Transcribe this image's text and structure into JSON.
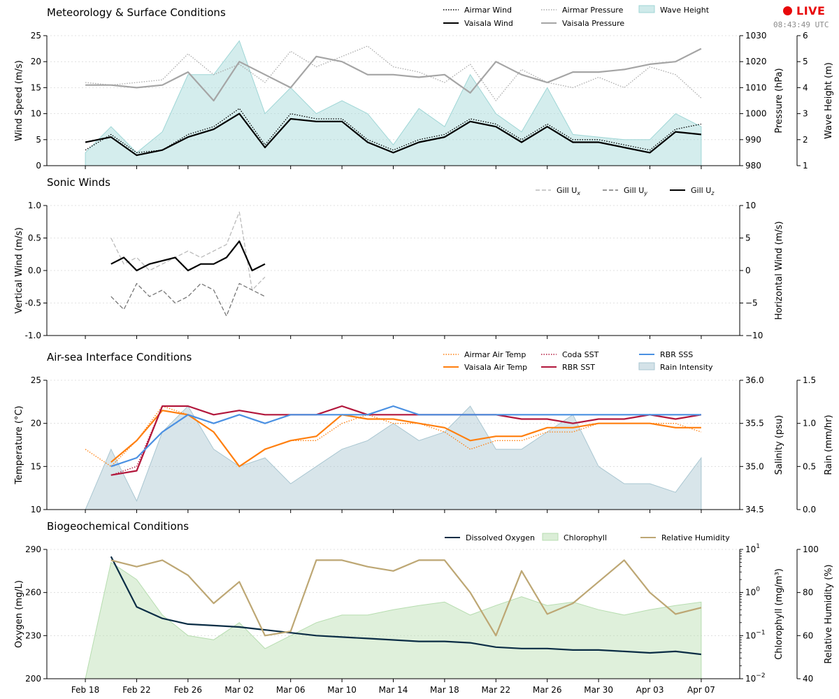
{
  "status": {
    "live_label": "LIVE",
    "live_color": "#e8080a",
    "clock": "08:43:49 UTC"
  },
  "x_axis": {
    "type": "date",
    "range": [
      "2025-02-15",
      "2025-04-10"
    ],
    "tick_labels": [
      "Feb 18",
      "Feb 22",
      "Feb 26",
      "Mar 02",
      "Mar 06",
      "Mar 10",
      "Mar 14",
      "Mar 18",
      "Mar 22",
      "Mar 26",
      "Mar 30",
      "Apr 03",
      "Apr 07"
    ]
  },
  "chart_data": [
    {
      "type": "line",
      "title": "Meteorology & Surface Conditions",
      "ylabel": "Wind Speed (m/s)",
      "ylim": [
        0,
        25
      ],
      "yticks": [
        0,
        5,
        10,
        15,
        20,
        25
      ],
      "y2label": "Pressure (hPa)",
      "y2lim": [
        980,
        1030
      ],
      "y2ticks": [
        980,
        990,
        1000,
        1010,
        1020,
        1030
      ],
      "y3label": "Wave Height (m)",
      "y3lim": [
        1,
        6
      ],
      "y3ticks": [
        1,
        2,
        3,
        4,
        5,
        6
      ],
      "grid": true,
      "legend": "top-right",
      "x": [
        "2025-02-18",
        "2025-02-20",
        "2025-02-22",
        "2025-02-24",
        "2025-02-26",
        "2025-02-28",
        "2025-03-02",
        "2025-03-04",
        "2025-03-06",
        "2025-03-08",
        "2025-03-10",
        "2025-03-12",
        "2025-03-14",
        "2025-03-16",
        "2025-03-18",
        "2025-03-20",
        "2025-03-22",
        "2025-03-24",
        "2025-03-26",
        "2025-03-28",
        "2025-03-30",
        "2025-04-01",
        "2025-04-03",
        "2025-04-05",
        "2025-04-07"
      ],
      "series": [
        {
          "name": "Airmar Wind",
          "axis": "y",
          "style": "dotted",
          "color": "#000000",
          "values": [
            3,
            6,
            2.5,
            3,
            6,
            7.5,
            11,
            4,
            10,
            9,
            9,
            5,
            3,
            5,
            6,
            9,
            8,
            5,
            8,
            5,
            5,
            4,
            3,
            7,
            8
          ]
        },
        {
          "name": "Vaisala Wind",
          "axis": "y",
          "style": "solid",
          "color": "#000000",
          "values": [
            4.5,
            5.5,
            2,
            3,
            5.5,
            7,
            10,
            3.5,
            9,
            8.5,
            8.5,
            4.5,
            2.5,
            4.5,
            5.5,
            8.5,
            7.5,
            4.5,
            7.5,
            4.5,
            4.5,
            3.5,
            2.5,
            6.5,
            6
          ]
        },
        {
          "name": "Airmar Pressure",
          "axis": "y2",
          "style": "dotted",
          "color": "#aaaaaa",
          "values": [
            1012,
            1011,
            1012,
            1013,
            1023,
            1015,
            1019,
            1012,
            1024,
            1018,
            1022,
            1026,
            1018,
            1016,
            1012,
            1019,
            1005,
            1017,
            1012,
            1010,
            1014,
            1010,
            1018,
            1015,
            1006
          ]
        },
        {
          "name": "Vaisala Pressure",
          "axis": "y2",
          "style": "solid",
          "color": "#a5a5a5",
          "values": [
            1011,
            1011,
            1010,
            1011,
            1016,
            1005,
            1020,
            1015,
            1010,
            1022,
            1020,
            1015,
            1015,
            1014,
            1015,
            1008,
            1020,
            1015,
            1012,
            1016,
            1016,
            1017,
            1019,
            1020,
            1025
          ]
        },
        {
          "name": "Wave Height",
          "axis": "y3",
          "type": "area",
          "color": "#9fd6d6",
          "values": [
            1.5,
            2.5,
            1.5,
            2.3,
            4.5,
            4.5,
            5.8,
            3,
            4,
            3,
            3.5,
            3,
            1.8,
            3.2,
            2.5,
            4.5,
            3,
            2.3,
            4,
            2.2,
            2.1,
            2,
            2,
            3,
            2.5
          ]
        }
      ]
    },
    {
      "type": "line",
      "title": "Sonic Winds",
      "ylabel": "Vertical Wind (m/s)",
      "ylim": [
        -1.0,
        1.0
      ],
      "yticks": [
        -1.0,
        -0.5,
        0.0,
        0.5,
        1.0
      ],
      "y2label": "Horizontal Wind (m/s)",
      "y2lim": [
        -10,
        10
      ],
      "y2ticks": [
        -10,
        -5,
        0,
        5,
        10
      ],
      "grid": true,
      "legend": "top-right",
      "x": [
        "2025-02-20",
        "2025-02-21",
        "2025-02-22",
        "2025-02-23",
        "2025-02-24",
        "2025-02-25",
        "2025-02-26",
        "2025-02-27",
        "2025-02-28",
        "2025-03-01",
        "2025-03-02",
        "2025-03-03",
        "2025-03-04"
      ],
      "series": [
        {
          "name": "Gill U_x",
          "axis": "y2",
          "style": "dashed",
          "color": "#bbbbbb",
          "values": [
            5,
            1,
            2,
            0,
            1,
            2,
            3,
            2,
            3,
            4,
            9,
            -3,
            -1
          ]
        },
        {
          "name": "Gill U_y",
          "axis": "y2",
          "style": "dashed",
          "color": "#777777",
          "values": [
            -4,
            -6,
            -2,
            -4,
            -3,
            -5,
            -4,
            -2,
            -3,
            -7,
            -2,
            -3,
            -4
          ]
        },
        {
          "name": "Gill U_z",
          "axis": "y",
          "style": "solid",
          "color": "#000000",
          "values": [
            0.1,
            0.2,
            0.0,
            0.1,
            0.15,
            0.2,
            0.0,
            0.1,
            0.1,
            0.2,
            0.45,
            0.0,
            0.1
          ]
        }
      ]
    },
    {
      "type": "line",
      "title": "Air-sea Interface Conditions",
      "ylabel": "Temperature (°C)",
      "ylim": [
        10,
        25
      ],
      "yticks": [
        10,
        15,
        20,
        25
      ],
      "y2label": "Salinity (psu)",
      "y2lim": [
        34.5,
        36.0
      ],
      "y2ticks": [
        34.5,
        35.0,
        35.5,
        36.0
      ],
      "y3label": "Rain (mm/hr)",
      "y3lim": [
        0.0,
        1.5
      ],
      "y3ticks": [
        0.0,
        0.5,
        1.0,
        1.5
      ],
      "grid": true,
      "legend": "top-right",
      "x": [
        "2025-02-18",
        "2025-02-20",
        "2025-02-22",
        "2025-02-24",
        "2025-02-26",
        "2025-02-28",
        "2025-03-02",
        "2025-03-04",
        "2025-03-06",
        "2025-03-08",
        "2025-03-10",
        "2025-03-12",
        "2025-03-14",
        "2025-03-16",
        "2025-03-18",
        "2025-03-20",
        "2025-03-22",
        "2025-03-24",
        "2025-03-26",
        "2025-03-28",
        "2025-03-30",
        "2025-04-01",
        "2025-04-03",
        "2025-04-05",
        "2025-04-07"
      ],
      "series": [
        {
          "name": "Airmar Air Temp",
          "axis": "y",
          "style": "dotted",
          "color": "#ff7f0e",
          "values": [
            17,
            15,
            18,
            22,
            21,
            19,
            15,
            17,
            18,
            18,
            20,
            21,
            20,
            20,
            19,
            17,
            18,
            18,
            19,
            19,
            20,
            20,
            20,
            20,
            19
          ]
        },
        {
          "name": "Vaisala Air Temp",
          "axis": "y",
          "style": "solid",
          "color": "#ff7f0e",
          "values": [
            null,
            15.5,
            18,
            21.5,
            21,
            19,
            15,
            17,
            18,
            18.5,
            21,
            20.5,
            20.5,
            20,
            19.5,
            18,
            18.5,
            18.5,
            19.5,
            19.5,
            20,
            20,
            20,
            19.5,
            19.5
          ]
        },
        {
          "name": "Coda SST",
          "axis": "y",
          "style": "dotted",
          "color": "#b2173c",
          "values": [
            null,
            14,
            15,
            22,
            22,
            21,
            21.5,
            21,
            21,
            21,
            22,
            21,
            21,
            21,
            21,
            21,
            21,
            20.5,
            20.5,
            20,
            20.5,
            20.5,
            21,
            21,
            21
          ]
        },
        {
          "name": "RBR SST",
          "axis": "y",
          "style": "solid",
          "color": "#b2173c",
          "values": [
            null,
            14,
            14.5,
            22,
            22,
            21,
            21.5,
            21,
            21,
            21,
            22,
            21,
            21,
            21,
            21,
            21,
            21,
            20.5,
            20.5,
            20,
            20.5,
            20.5,
            21,
            20.5,
            21
          ]
        },
        {
          "name": "RBR SSS",
          "axis": "y2",
          "style": "solid",
          "color": "#4a90e2",
          "values": [
            null,
            35.0,
            35.1,
            35.4,
            35.6,
            35.5,
            35.6,
            35.5,
            35.6,
            35.6,
            35.6,
            35.6,
            35.7,
            35.6,
            35.6,
            35.6,
            35.6,
            35.6,
            35.6,
            35.6,
            35.6,
            35.6,
            35.6,
            35.6,
            35.6
          ]
        },
        {
          "name": "Rain Intensity",
          "axis": "y3",
          "type": "area",
          "color": "#a9c6d1",
          "values": [
            0,
            0.7,
            0.1,
            0.9,
            1.2,
            0.7,
            0.5,
            0.6,
            0.3,
            0.5,
            0.7,
            0.8,
            1.0,
            0.8,
            0.9,
            1.2,
            0.7,
            0.7,
            0.9,
            1.1,
            0.5,
            0.3,
            0.3,
            0.2,
            0.6
          ]
        }
      ]
    },
    {
      "type": "line",
      "title": "Biogeochemical Conditions",
      "ylabel": "Oxygen (mg/L)",
      "ylim": [
        200,
        290
      ],
      "yticks": [
        200,
        230,
        260,
        290
      ],
      "y2label": "Chlorophyll (mg/m³)",
      "y2scale": "log",
      "y2lim": [
        0.01,
        10
      ],
      "y2ticks": [
        "10^-2",
        "10^-1",
        "10^0",
        "10^1"
      ],
      "y3label": "Relative Humidity (%)",
      "y3lim": [
        40,
        100
      ],
      "y3ticks": [
        40,
        60,
        80,
        100
      ],
      "grid": true,
      "legend": "top-right",
      "x": [
        "2025-02-18",
        "2025-02-20",
        "2025-02-22",
        "2025-02-24",
        "2025-02-26",
        "2025-02-28",
        "2025-03-02",
        "2025-03-04",
        "2025-03-06",
        "2025-03-08",
        "2025-03-10",
        "2025-03-12",
        "2025-03-14",
        "2025-03-16",
        "2025-03-18",
        "2025-03-20",
        "2025-03-22",
        "2025-03-24",
        "2025-03-26",
        "2025-03-28",
        "2025-03-30",
        "2025-04-01",
        "2025-04-03",
        "2025-04-05",
        "2025-04-07"
      ],
      "series": [
        {
          "name": "Dissolved Oxygen",
          "axis": "y",
          "style": "solid",
          "color": "#0b2d45",
          "values": [
            null,
            285,
            250,
            242,
            238,
            237,
            236,
            234,
            232,
            230,
            229,
            228,
            227,
            226,
            226,
            225,
            222,
            221,
            221,
            220,
            220,
            219,
            218,
            219,
            217
          ]
        },
        {
          "name": "Chlorophyll",
          "axis": "y2",
          "type": "area",
          "color": "#b7ddb0",
          "values": [
            0.01,
            5,
            2,
            0.3,
            0.1,
            0.08,
            0.2,
            0.05,
            0.1,
            0.2,
            0.3,
            0.3,
            0.4,
            0.5,
            0.6,
            0.3,
            0.5,
            0.8,
            0.5,
            0.6,
            0.4,
            0.3,
            0.4,
            0.5,
            0.6
          ]
        },
        {
          "name": "Relative Humidity",
          "axis": "y3",
          "style": "solid",
          "color": "#bda774",
          "values": [
            null,
            95,
            92,
            95,
            88,
            75,
            85,
            60,
            62,
            95,
            95,
            92,
            90,
            95,
            95,
            80,
            60,
            90,
            70,
            75,
            85,
            95,
            80,
            70,
            73
          ]
        }
      ]
    }
  ]
}
